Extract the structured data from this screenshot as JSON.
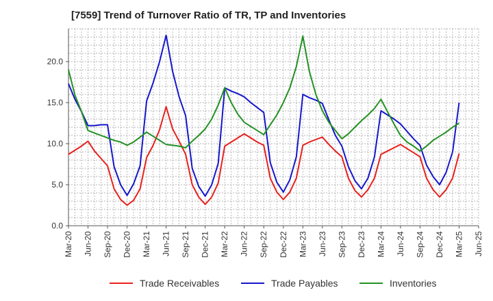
{
  "chart_data": {
    "type": "line",
    "title": "[7559]  Trend of Turnover Ratio of TR, TP and Inventories",
    "xlabel": "",
    "ylabel": "",
    "ylim": [
      0,
      24
    ],
    "yticks": [
      0,
      5,
      10,
      15,
      20
    ],
    "ytick_labels": [
      "0.0",
      "5.0",
      "10.0",
      "15.0",
      "20.0"
    ],
    "xtick_labels": [
      "Mar-20",
      "Jun-20",
      "Sep-20",
      "Dec-20",
      "Mar-21",
      "Jun-21",
      "Sep-21",
      "Dec-21",
      "Mar-22",
      "Jun-22",
      "Sep-22",
      "Dec-22",
      "Mar-23",
      "Jun-23",
      "Sep-23",
      "Dec-23",
      "Mar-24",
      "Jun-24",
      "Sep-24",
      "Dec-24",
      "Mar-25",
      "Jun-25"
    ],
    "grid": true,
    "legend_position": "bottom",
    "series": [
      {
        "name": "Trade Receivables",
        "color": "#e8201c",
        "values": [
          8.7,
          9.2,
          9.7,
          10.3,
          9.1,
          8.2,
          7.3,
          4.5,
          3.2,
          2.5,
          3.1,
          4.5,
          8.3,
          9.8,
          11.7,
          14.5,
          11.8,
          10.3,
          8.7,
          5.0,
          3.5,
          2.6,
          3.5,
          5.2,
          9.7,
          10.2,
          10.7,
          11.2,
          10.7,
          10.2,
          9.8,
          5.8,
          4.1,
          3.2,
          4.1,
          5.8,
          9.8,
          10.2,
          10.5,
          10.8,
          9.9,
          9.1,
          8.4,
          5.8,
          4.3,
          3.5,
          4.4,
          5.8,
          8.7,
          9.1,
          9.5,
          9.9,
          9.4,
          8.9,
          8.4,
          5.8,
          4.4,
          3.5,
          4.4,
          5.8,
          8.8
        ]
      },
      {
        "name": "Trade Payables",
        "color": "#1516cc",
        "values": [
          17.3,
          15.4,
          13.9,
          12.2,
          12.2,
          12.3,
          12.3,
          7.2,
          5.0,
          3.7,
          5.1,
          7.3,
          15.2,
          17.4,
          20.0,
          23.2,
          18.8,
          15.7,
          13.4,
          7.0,
          4.8,
          3.6,
          5.0,
          7.6,
          16.8,
          16.4,
          16.1,
          15.7,
          15.0,
          14.4,
          13.8,
          7.7,
          5.3,
          4.1,
          5.6,
          8.4,
          16.0,
          15.6,
          15.3,
          14.9,
          12.9,
          11.0,
          9.7,
          7.2,
          5.5,
          4.5,
          5.8,
          8.4,
          14.0,
          13.5,
          13.0,
          12.4,
          11.5,
          10.6,
          9.8,
          7.4,
          6.0,
          5.0,
          6.5,
          9.0,
          15.0
        ]
      },
      {
        "name": "Inventories",
        "color": "#239023",
        "values": [
          19.0,
          15.9,
          13.9,
          11.6,
          11.3,
          11.0,
          10.7,
          10.4,
          10.2,
          9.8,
          10.2,
          10.8,
          11.4,
          10.9,
          10.4,
          9.9,
          9.8,
          9.7,
          9.5,
          10.3,
          11.0,
          11.8,
          13.0,
          14.7,
          16.8,
          15.0,
          13.6,
          12.6,
          12.1,
          11.6,
          11.1,
          12.3,
          13.5,
          15.0,
          16.8,
          19.4,
          23.1,
          18.8,
          16.0,
          14.0,
          12.6,
          11.6,
          10.6,
          11.2,
          12.0,
          12.8,
          13.5,
          14.3,
          15.4,
          13.9,
          12.4,
          11.0,
          10.2,
          9.7,
          9.1,
          9.7,
          10.4,
          10.9,
          11.4,
          12.0,
          12.5
        ]
      }
    ]
  }
}
